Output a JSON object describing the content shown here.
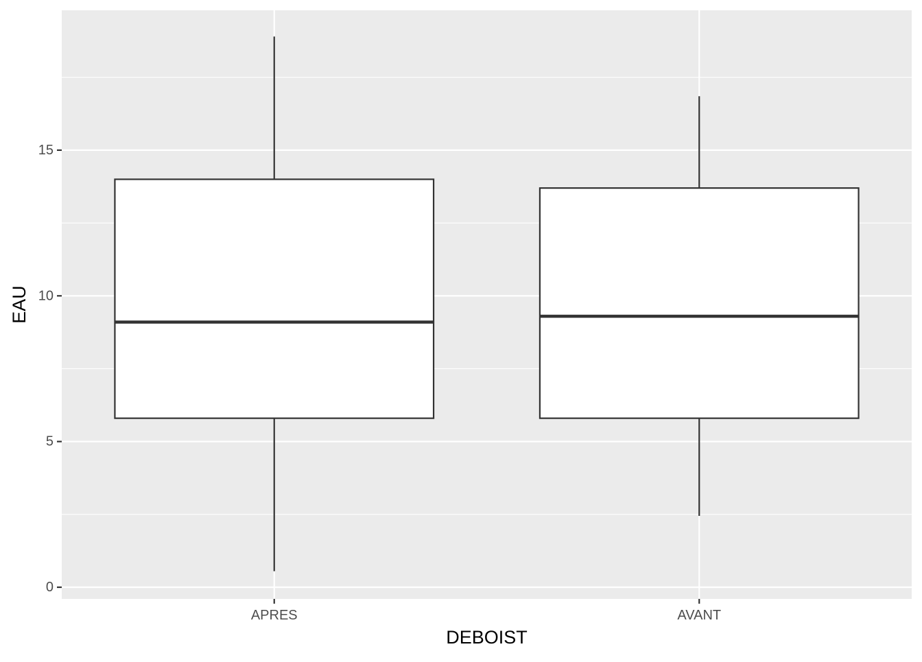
{
  "chart_data": {
    "type": "boxplot",
    "title": "",
    "xlabel": "DEBOIST",
    "ylabel": "EAU",
    "categories": [
      "APRES",
      "AVANT"
    ],
    "boxes": [
      {
        "category": "APRES",
        "whisker_low": 0.55,
        "q1": 5.8,
        "median": 9.1,
        "q3": 14.0,
        "whisker_high": 18.9
      },
      {
        "category": "AVANT",
        "whisker_low": 2.45,
        "q1": 5.8,
        "median": 9.3,
        "q3": 13.7,
        "whisker_high": 16.85
      }
    ],
    "ylim": [
      -0.4,
      19.8
    ],
    "y_ticks": [
      0,
      5,
      10,
      15
    ],
    "y_tick_labels": [
      "0",
      "5",
      "10",
      "15"
    ],
    "y_minor_ticks": [
      2.5,
      7.5,
      12.5,
      17.5
    ],
    "grid": true,
    "legend": "none",
    "colors": {
      "panel_background": "#EBEBEB",
      "grid_line": "#FFFFFF",
      "box_fill": "#FFFFFF",
      "box_stroke": "#333333",
      "axis_text": "#4D4D4D",
      "axis_title": "#000000",
      "tick": "#333333"
    }
  }
}
